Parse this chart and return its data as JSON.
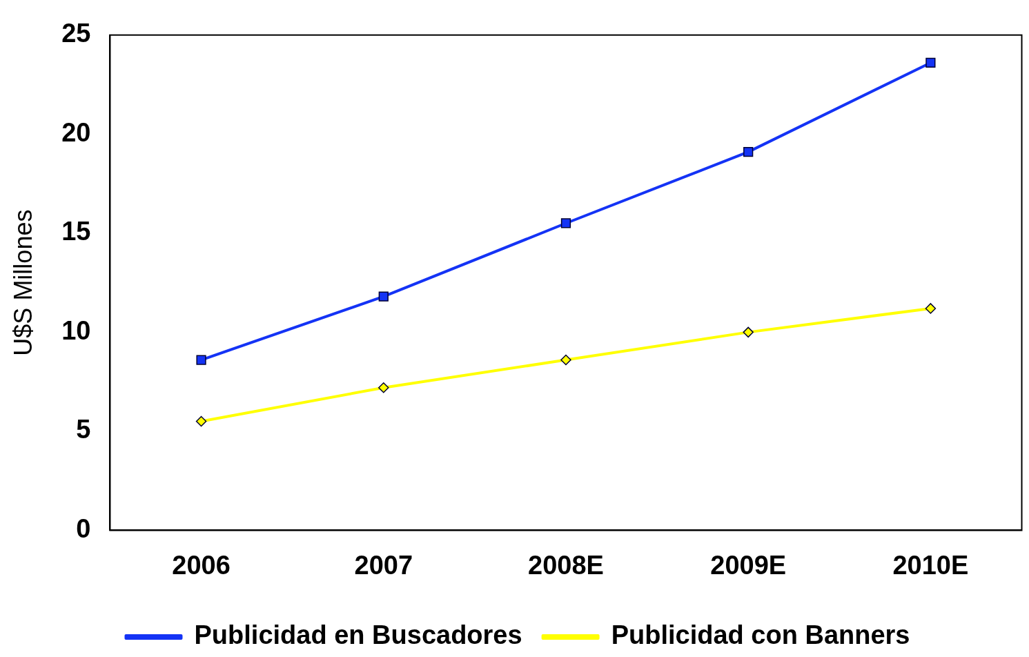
{
  "chart_data": {
    "type": "line",
    "ylabel": "U$S Millones",
    "categories": [
      "2006",
      "2007",
      "2008E",
      "2009E",
      "2010E"
    ],
    "series": [
      {
        "name": "Publicidad en Buscadores",
        "color": "#1433f5",
        "marker": "square",
        "values": [
          8.6,
          11.8,
          15.5,
          19.1,
          23.6
        ]
      },
      {
        "name": "Publicidad con Banners",
        "color": "#ffff00",
        "marker": "diamond",
        "values": [
          5.5,
          7.2,
          8.6,
          10.0,
          11.2
        ]
      }
    ],
    "ylim": [
      0,
      25
    ],
    "yticks": [
      0,
      5,
      10,
      15,
      20,
      25
    ],
    "grid": false,
    "legend": "bottom"
  }
}
